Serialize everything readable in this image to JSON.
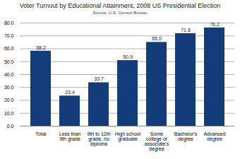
{
  "chart_data": {
    "type": "bar",
    "title": "Voter Turnout by Educational Attainment, 2008 US Presidential Election",
    "subtitle": "Source: U.S. Census Bureau",
    "categories": [
      "Total",
      "Less than 9th grade",
      "9th to 12th grade, no diploma",
      "High school graduate",
      "Some college or associate's degree",
      "Bachelor's degree",
      "Advanced degree"
    ],
    "values": [
      58.2,
      23.4,
      33.7,
      50.9,
      65.0,
      71.8,
      76.2
    ],
    "value_labels": [
      "58.2",
      "23.4",
      "33.7",
      "50.9",
      "65.0",
      "71.8",
      "76.2"
    ],
    "color": "#123d7a",
    "ylim": [
      0,
      80
    ],
    "yticks": [
      {
        "value": 0,
        "label": "0.0"
      },
      {
        "value": 10,
        "label": "10.0"
      },
      {
        "value": 20,
        "label": "20.0"
      },
      {
        "value": 30,
        "label": "30.0"
      },
      {
        "value": 40,
        "label": "40.0"
      },
      {
        "value": 50,
        "label": "50.0"
      },
      {
        "value": 60,
        "label": "60.0"
      },
      {
        "value": 70,
        "label": "70.0"
      },
      {
        "value": 80,
        "label": "80.0"
      }
    ],
    "grid": true,
    "data_labels": true
  }
}
